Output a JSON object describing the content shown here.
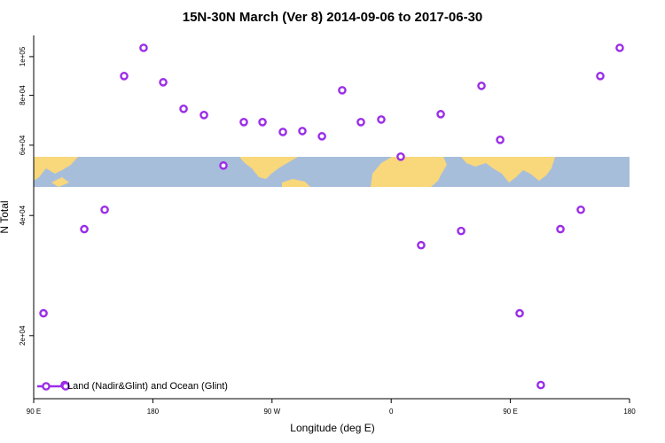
{
  "chart_data": {
    "type": "scatter",
    "title": "15N-30N March (Ver 8)   2014-09-06 to 2017-06-30",
    "x_label": "Longitude (deg E)",
    "y_label": "N Total",
    "x": [
      97.4,
      113.4,
      128.2,
      143.6,
      158.3,
      173.0,
      187.8,
      203.2,
      218.6,
      233.3,
      248.7,
      262.8,
      278.2,
      292.9,
      307.7,
      323.0,
      337.1,
      352.5,
      367.2,
      382.6,
      397.4,
      412.8,
      428.2,
      442.3,
      457.0,
      473.0,
      487.8,
      503.2,
      517.9,
      532.6
    ],
    "series": [
      {
        "name": "Land (Nadir&Glint) and Ocean (Glint)",
        "color": "#9b2de8",
        "values": [
          22750,
          15040,
          36970,
          41340,
          89400,
          105200,
          86250,
          74000,
          71400,
          53350,
          68550,
          68550,
          64750,
          65100,
          63150,
          82360,
          68550,
          69570,
          56160,
          33700,
          71760,
          36580,
          84480,
          61880,
          22750,
          15040,
          36970,
          41340,
          89400,
          105200
        ]
      }
    ],
    "xlim": [
      90,
      540
    ],
    "xticks": [
      {
        "value": 90,
        "label": "90 E"
      },
      {
        "value": 180,
        "label": "180"
      },
      {
        "value": 270,
        "label": "90 W"
      },
      {
        "value": 360,
        "label": "0"
      },
      {
        "value": 450,
        "label": "90 E"
      },
      {
        "value": 540,
        "label": "180"
      }
    ],
    "ylim": [
      13900,
      113000
    ],
    "y_log": true,
    "yticks": [
      {
        "value": 20000,
        "label": "2e+04"
      },
      {
        "value": 40000,
        "label": "4e+04"
      },
      {
        "value": 60000,
        "label": "6e+04"
      },
      {
        "value": 80000,
        "label": "8e+04"
      },
      {
        "value": 100000,
        "label": "1e+05"
      }
    ],
    "legend_position": "bottom-left"
  }
}
